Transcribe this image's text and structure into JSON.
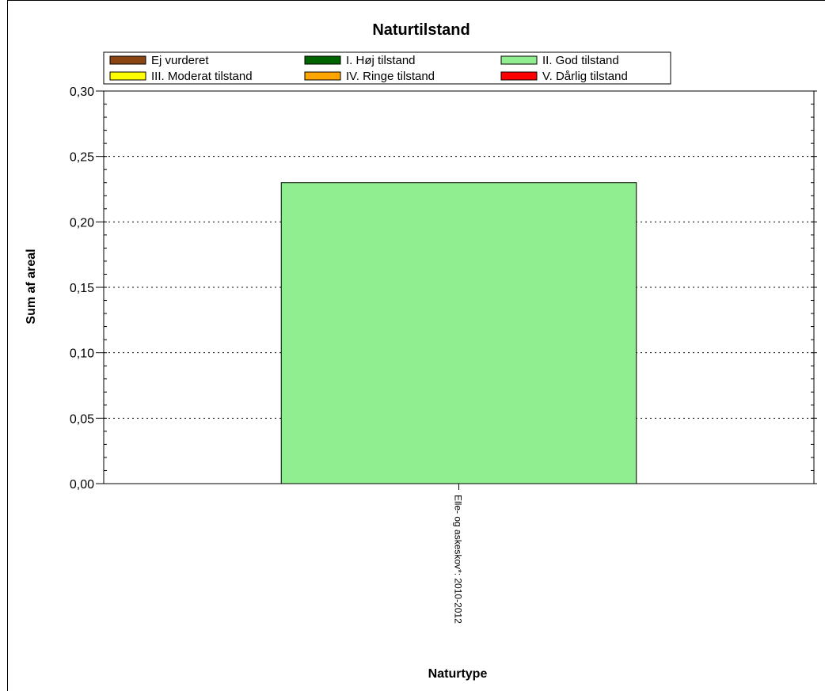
{
  "chart_data": {
    "type": "bar",
    "title": "Naturtilstand",
    "xlabel": "Naturtype",
    "ylabel": "Sum af areal",
    "categories": [
      "Elle- og askeskov*: 2010-2012"
    ],
    "series": [
      {
        "name": "Ej vurderet",
        "color": "#8B4513",
        "values": [
          0
        ]
      },
      {
        "name": "I. Høj tilstand",
        "color": "#006400",
        "values": [
          0
        ]
      },
      {
        "name": "II. God tilstand",
        "color": "#90EE90",
        "values": [
          0.23
        ]
      },
      {
        "name": "III. Moderat tilstand",
        "color": "#FFFF00",
        "values": [
          0
        ]
      },
      {
        "name": "IV. Ringe tilstand",
        "color": "#FFA500",
        "values": [
          0
        ]
      },
      {
        "name": "V. Dårlig tilstand",
        "color": "#FF0000",
        "values": [
          0
        ]
      }
    ],
    "ylim": [
      0,
      0.3
    ],
    "yticks": [
      0,
      0.05,
      0.1,
      0.15,
      0.2,
      0.25,
      0.3
    ],
    "ytick_labels": [
      "0,00",
      "0,05",
      "0,10",
      "0,15",
      "0,20",
      "0,25",
      "0,30"
    ],
    "grid": true,
    "legend_position": "top"
  }
}
